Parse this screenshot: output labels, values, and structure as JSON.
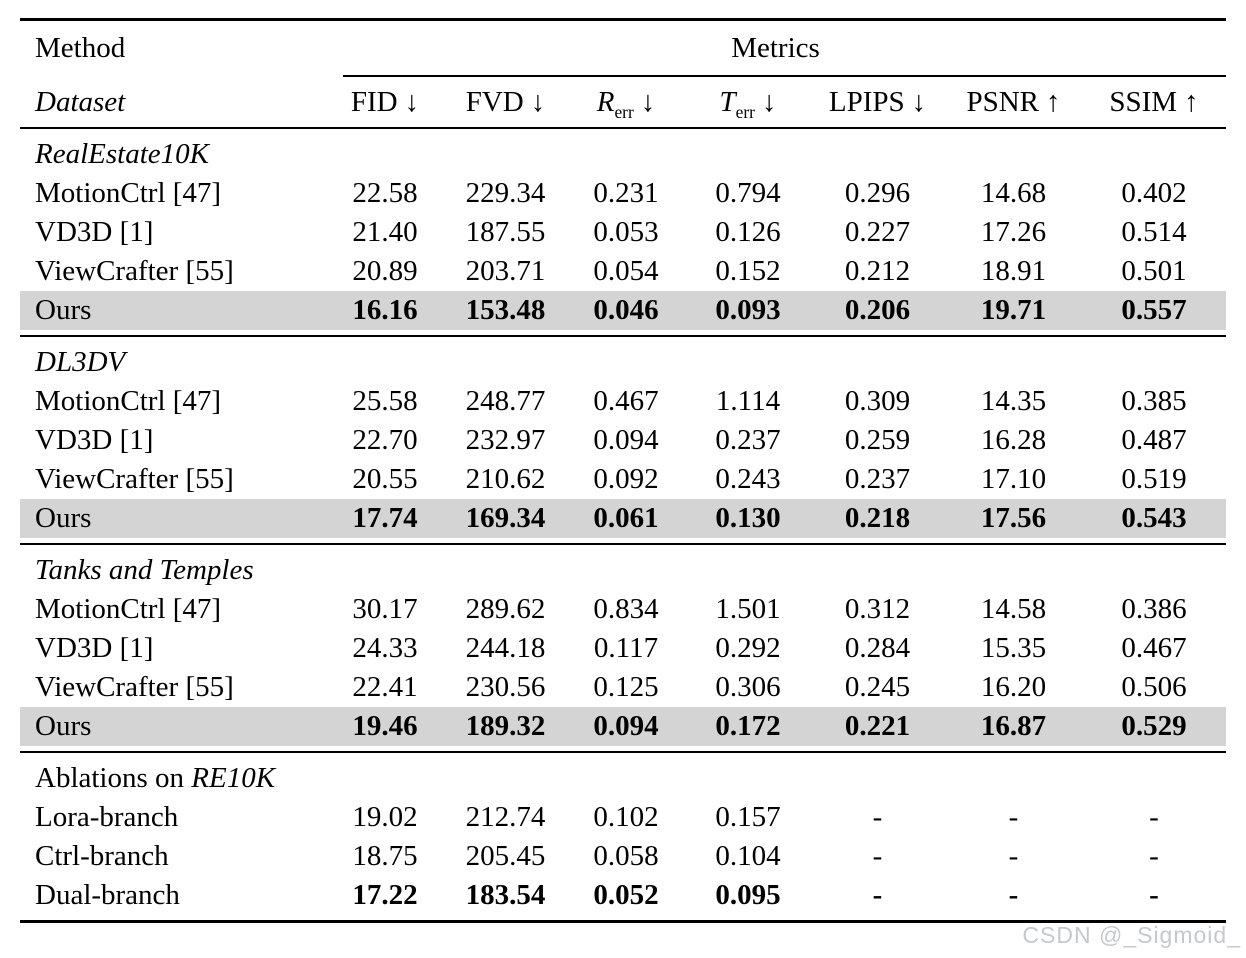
{
  "table": {
    "header": {
      "method_label": "Method",
      "metrics_label": "Metrics",
      "dataset_label": "Dataset",
      "columns": [
        {
          "base": "FID",
          "sub": "",
          "arrow": "↓"
        },
        {
          "base": "FVD",
          "sub": "",
          "arrow": "↓"
        },
        {
          "base": "R",
          "sub": "err",
          "arrow": "↓"
        },
        {
          "base": "T",
          "sub": "err",
          "arrow": "↓"
        },
        {
          "base": "LPIPS",
          "sub": "",
          "arrow": "↓"
        },
        {
          "base": "PSNR",
          "sub": "",
          "arrow": "↑"
        },
        {
          "base": "SSIM",
          "sub": "",
          "arrow": "↑"
        }
      ]
    },
    "sections": [
      {
        "title_roman": "",
        "title_italic": "RealEstate10K",
        "rows": [
          {
            "method": "MotionCtrl [47]",
            "bold": false,
            "highlight": false,
            "values": [
              "22.58",
              "229.34",
              "0.231",
              "0.794",
              "0.296",
              "14.68",
              "0.402"
            ]
          },
          {
            "method": "VD3D [1]",
            "bold": false,
            "highlight": false,
            "values": [
              "21.40",
              "187.55",
              "0.053",
              "0.126",
              "0.227",
              "17.26",
              "0.514"
            ]
          },
          {
            "method": "ViewCrafter [55]",
            "bold": false,
            "highlight": false,
            "values": [
              "20.89",
              "203.71",
              "0.054",
              "0.152",
              "0.212",
              "18.91",
              "0.501"
            ]
          },
          {
            "method": "Ours",
            "bold": true,
            "highlight": true,
            "values": [
              "16.16",
              "153.48",
              "0.046",
              "0.093",
              "0.206",
              "19.71",
              "0.557"
            ]
          }
        ]
      },
      {
        "title_roman": "",
        "title_italic": "DL3DV",
        "rows": [
          {
            "method": "MotionCtrl [47]",
            "bold": false,
            "highlight": false,
            "values": [
              "25.58",
              "248.77",
              "0.467",
              "1.114",
              "0.309",
              "14.35",
              "0.385"
            ]
          },
          {
            "method": "VD3D [1]",
            "bold": false,
            "highlight": false,
            "values": [
              "22.70",
              "232.97",
              "0.094",
              "0.237",
              "0.259",
              "16.28",
              "0.487"
            ]
          },
          {
            "method": "ViewCrafter [55]",
            "bold": false,
            "highlight": false,
            "values": [
              "20.55",
              "210.62",
              "0.092",
              "0.243",
              "0.237",
              "17.10",
              "0.519"
            ]
          },
          {
            "method": "Ours",
            "bold": true,
            "highlight": true,
            "values": [
              "17.74",
              "169.34",
              "0.061",
              "0.130",
              "0.218",
              "17.56",
              "0.543"
            ]
          }
        ]
      },
      {
        "title_roman": "",
        "title_italic": "Tanks and Temples",
        "rows": [
          {
            "method": "MotionCtrl [47]",
            "bold": false,
            "highlight": false,
            "values": [
              "30.17",
              "289.62",
              "0.834",
              "1.501",
              "0.312",
              "14.58",
              "0.386"
            ]
          },
          {
            "method": "VD3D [1]",
            "bold": false,
            "highlight": false,
            "values": [
              "24.33",
              "244.18",
              "0.117",
              "0.292",
              "0.284",
              "15.35",
              "0.467"
            ]
          },
          {
            "method": "ViewCrafter [55]",
            "bold": false,
            "highlight": false,
            "values": [
              "22.41",
              "230.56",
              "0.125",
              "0.306",
              "0.245",
              "16.20",
              "0.506"
            ]
          },
          {
            "method": "Ours",
            "bold": true,
            "highlight": true,
            "values": [
              "19.46",
              "189.32",
              "0.094",
              "0.172",
              "0.221",
              "16.87",
              "0.529"
            ]
          }
        ]
      },
      {
        "title_roman": "Ablations on ",
        "title_italic": "RE10K",
        "rows": [
          {
            "method": "Lora-branch",
            "bold": false,
            "highlight": false,
            "values": [
              "19.02",
              "212.74",
              "0.102",
              "0.157",
              "-",
              "-",
              "-"
            ]
          },
          {
            "method": "Ctrl-branch",
            "bold": false,
            "highlight": false,
            "values": [
              "18.75",
              "205.45",
              "0.058",
              "0.104",
              "-",
              "-",
              "-"
            ]
          },
          {
            "method": "Dual-branch",
            "bold": true,
            "highlight": false,
            "values": [
              "17.22",
              "183.54",
              "0.052",
              "0.095",
              "-",
              "-",
              "-"
            ]
          }
        ]
      }
    ]
  },
  "watermark": "CSDN @_Sigmoid_",
  "colors": {
    "highlight_row": "#d4d4d4",
    "watermark_text": "#c5c9cc",
    "text": "#000000",
    "background": "#ffffff"
  }
}
